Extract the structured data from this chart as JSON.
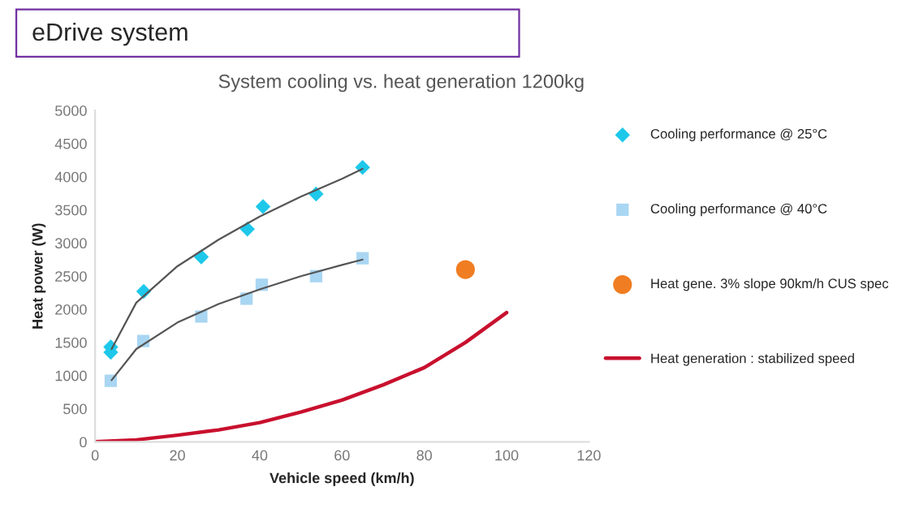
{
  "chart_data": {
    "type": "scatter",
    "title": "eDrive system",
    "subtitle": "System cooling vs. heat generation 1200kg",
    "xlabel": "Vehicle speed (km/h)",
    "ylabel": "Heat power (W)",
    "xlim": [
      0,
      120
    ],
    "xticks": [
      0,
      20,
      40,
      60,
      80,
      100,
      120
    ],
    "ylim": [
      0,
      5000
    ],
    "yticks": [
      0,
      500,
      1000,
      1500,
      2000,
      2500,
      3000,
      3500,
      4000,
      4500,
      5000
    ],
    "grid": false,
    "legend": "right",
    "series": [
      {
        "name": "Cooling performance @ 25°C",
        "marker": "diamond",
        "color": "#1ec8ea",
        "x": [
          3.8,
          3.8,
          11.8,
          25.8,
          37,
          40.8,
          53.7,
          65
        ],
        "values": [
          1430,
          1350,
          2270,
          2790,
          3210,
          3550,
          3740,
          4140
        ]
      },
      {
        "name": "Cooling performance @ 40°C",
        "marker": "square",
        "color": "#a9d6f2",
        "x": [
          3.8,
          11.7,
          25.8,
          36.8,
          40.5,
          53.7,
          65
        ],
        "values": [
          920,
          1520,
          1890,
          2160,
          2370,
          2500,
          2770
        ]
      },
      {
        "name": "Heat gene. 3% slope 90km/h CUS spec",
        "marker": "circle",
        "color": "#f07d22",
        "x": [
          90
        ],
        "values": [
          2600
        ]
      },
      {
        "name": "Heat generation : stabilized speed",
        "type": "line",
        "marker": "none",
        "color": "#c8102e",
        "x": [
          0,
          10,
          20,
          30,
          40,
          50,
          60,
          70,
          80,
          90,
          100
        ],
        "values": [
          0,
          30,
          100,
          180,
          290,
          450,
          630,
          860,
          1120,
          1500,
          1950
        ]
      },
      {
        "type": "line",
        "marker": "none",
        "color": "#555555",
        "x": [
          4,
          10,
          20,
          30,
          40,
          50,
          60,
          65
        ],
        "values": [
          1400,
          2100,
          2650,
          3050,
          3400,
          3700,
          3970,
          4120
        ]
      },
      {
        "type": "line",
        "marker": "none",
        "color": "#555555",
        "x": [
          4,
          10,
          20,
          30,
          40,
          50,
          60,
          65
        ],
        "values": [
          930,
          1400,
          1800,
          2080,
          2300,
          2500,
          2670,
          2750
        ]
      }
    ]
  }
}
